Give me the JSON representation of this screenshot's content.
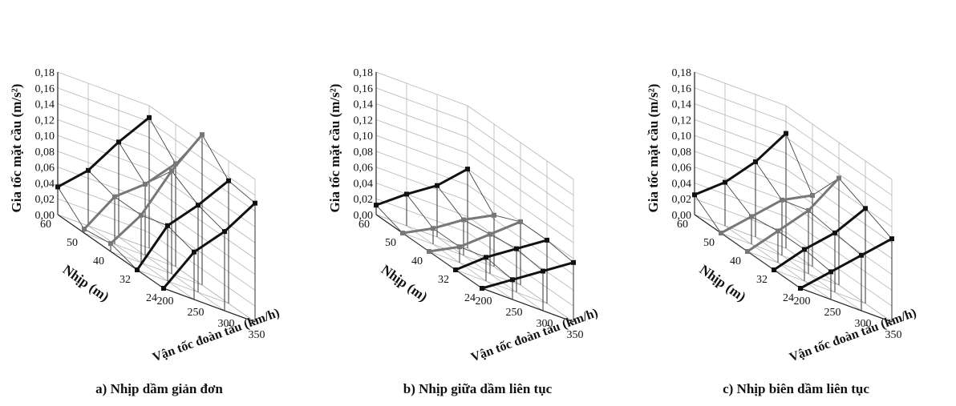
{
  "chart_data": [
    {
      "type": "line3d",
      "caption": "a) Nhịp dầm giản đơn",
      "zlabel": "Gia tốc mặt cầu (m/s²)",
      "ylabel": "Nhịp (m)",
      "xlabel": "Vận tốc đoàn tàu (km/h)",
      "ztick_labels": [
        "0,00",
        "0,02",
        "0,04",
        "0,06",
        "0,08",
        "0,10",
        "0,12",
        "0,14",
        "0,16",
        "0,18"
      ],
      "span_labels": [
        "60",
        "50",
        "40",
        "32",
        "24"
      ],
      "speed_labels": [
        "200",
        "250",
        "300",
        "350"
      ],
      "spans": [
        60,
        50,
        40,
        32,
        24
      ],
      "speeds": [
        200,
        250,
        300,
        350
      ],
      "zlim": [
        0,
        0.18
      ],
      "series": [
        {
          "span": 60,
          "values": [
            0.035,
            0.07,
            0.12,
            0.165
          ],
          "color": "#111111"
        },
        {
          "span": 50,
          "values": [
            0.005,
            0.06,
            0.09,
            0.13
          ],
          "color": "#777777"
        },
        {
          "span": 40,
          "values": [
            0.01,
            0.06,
            0.13,
            0.19
          ],
          "color": "#777777"
        },
        {
          "span": 32,
          "values": [
            0.0,
            0.07,
            0.11,
            0.155
          ],
          "color": "#111111"
        },
        {
          "span": 24,
          "values": [
            0.0,
            0.06,
            0.1,
            0.15
          ],
          "color": "#111111"
        }
      ]
    },
    {
      "type": "line3d",
      "caption": "b) Nhịp giữa dầm liên tục",
      "zlabel": "Gia tốc mặt cầu (m/s²)",
      "ylabel": "Nhịp (m)",
      "xlabel": "Vận tốc đoàn tàu (km/h)",
      "ztick_labels": [
        "0,00",
        "0,02",
        "0,04",
        "0,06",
        "0,08",
        "0,10",
        "0,12",
        "0,14",
        "0,16",
        "0,18"
      ],
      "span_labels": [
        "60",
        "50",
        "40",
        "32",
        "24"
      ],
      "speed_labels": [
        "200",
        "250",
        "300",
        "350"
      ],
      "spans": [
        60,
        50,
        40,
        32,
        24
      ],
      "speeds": [
        200,
        250,
        300,
        350
      ],
      "zlim": [
        0,
        0.18
      ],
      "series": [
        {
          "span": 60,
          "values": [
            0.012,
            0.04,
            0.065,
            0.1
          ],
          "color": "#111111"
        },
        {
          "span": 50,
          "values": [
            0.0,
            0.02,
            0.045,
            0.065
          ],
          "color": "#777777"
        },
        {
          "span": 40,
          "values": [
            0.0,
            0.02,
            0.05,
            0.08
          ],
          "color": "#777777"
        },
        {
          "span": 32,
          "values": [
            0.0,
            0.03,
            0.055,
            0.08
          ],
          "color": "#111111"
        },
        {
          "span": 24,
          "values": [
            0.0,
            0.025,
            0.05,
            0.075
          ],
          "color": "#111111"
        }
      ]
    },
    {
      "type": "line3d",
      "caption": "c) Nhịp biên dầm liên tục",
      "zlabel": "Gia tốc mặt cầu (m/s²)",
      "ylabel": "Nhịp (m)",
      "xlabel": "Vận tốc đoàn tàu (km/h)",
      "ztick_labels": [
        "0,00",
        "0,02",
        "0,04",
        "0,06",
        "0,08",
        "0,10",
        "0,12",
        "0,14",
        "0,16",
        "0,18"
      ],
      "span_labels": [
        "60",
        "50",
        "40",
        "32",
        "24"
      ],
      "speed_labels": [
        "200",
        "250",
        "300",
        "350"
      ],
      "spans": [
        60,
        50,
        40,
        32,
        24
      ],
      "speeds": [
        200,
        250,
        300,
        350
      ],
      "zlim": [
        0,
        0.18
      ],
      "series": [
        {
          "span": 60,
          "values": [
            0.025,
            0.055,
            0.095,
            0.145
          ],
          "color": "#111111"
        },
        {
          "span": 50,
          "values": [
            0.0,
            0.035,
            0.07,
            0.09
          ],
          "color": "#777777"
        },
        {
          "span": 40,
          "values": [
            0.0,
            0.04,
            0.08,
            0.135
          ],
          "color": "#777777"
        },
        {
          "span": 32,
          "values": [
            0.0,
            0.04,
            0.075,
            0.12
          ],
          "color": "#111111"
        },
        {
          "span": 24,
          "values": [
            0.0,
            0.035,
            0.07,
            0.105
          ],
          "color": "#111111"
        }
      ]
    }
  ]
}
